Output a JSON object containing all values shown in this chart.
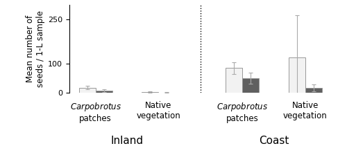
{
  "ylabel": "Mean number of\nseeds / 1-L sample",
  "ylim": [
    0,
    300
  ],
  "yticks": [
    0,
    100,
    250
  ],
  "bar_means_white": [
    18,
    4,
    85,
    120
  ],
  "bar_means_grey": [
    8,
    2,
    50,
    18
  ],
  "bar_err_white": [
    6,
    2,
    20,
    145
  ],
  "bar_err_grey": [
    4,
    1,
    18,
    12
  ],
  "white_color": "#f2f2f2",
  "grey_color": "#606060",
  "edge_color": "#999999",
  "bar_width": 0.32,
  "positions": [
    1.0,
    2.2,
    3.8,
    5.0
  ],
  "divider_x": 3.0,
  "xlim": [
    0.5,
    5.6
  ],
  "inland_label": "Inland",
  "coast_label": "Coast",
  "inland_x": 1.6,
  "coast_x": 4.4,
  "subgroup_labels": [
    "Carpobrotus\npatches",
    "Native\nvegetation",
    "Carpobrotus\npatches",
    "Native\nvegetation"
  ],
  "label_fontsize": 8.5,
  "group_fontsize": 11,
  "tick_fontsize": 8,
  "ylabel_fontsize": 8.5
}
